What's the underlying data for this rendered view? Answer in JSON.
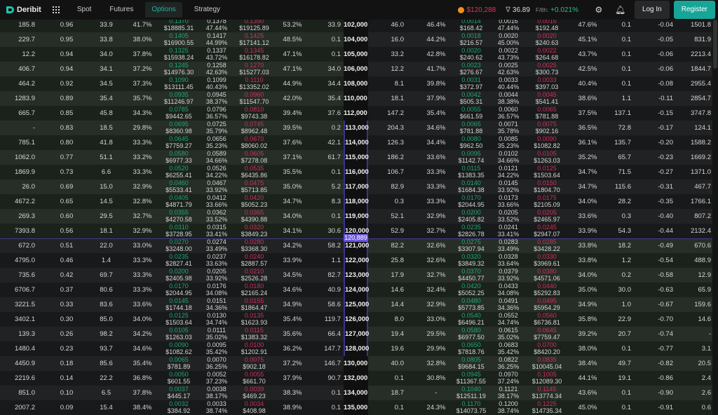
{
  "header": {
    "brand": "Deribit",
    "nav": [
      "Spot",
      "Futures",
      "Options",
      "Strategy"
    ],
    "active_nav": "Options",
    "btc_price": "$120,288",
    "dvol": "36.89",
    "funding_label": "F/8h:",
    "funding": "+0.021%",
    "login": "Log In",
    "register": "Register",
    "icons": [
      "deribit-logo",
      "apps-grid-icon",
      "bitcoin-icon",
      "dvol-icon",
      "gear-icon",
      "bell-icon"
    ]
  },
  "colors": {
    "accent": "#17a597",
    "bid": "#1fa876",
    "ask": "#d0305a",
    "underlying": "#6c55e0"
  },
  "underlying_price": "120,889",
  "rows": [
    {
      "strike": "102,000",
      "call": [
        "185.8",
        "0.96",
        "33.9",
        "41.7%",
        "0.1370",
        "$18885.31",
        "0.1378",
        "47.44%",
        "0.1390",
        "$19125.89",
        "53.2%",
        "33.9"
      ],
      "put": [
        "46.0",
        "46.4%",
        "0.0014",
        "$168.42",
        "0.0016",
        "47.44%",
        "0.0016",
        "$192.48",
        "47.6%",
        "0.1",
        "-0.04",
        "1501.8"
      ]
    },
    {
      "strike": "104,000",
      "call": [
        "229.7",
        "0.95",
        "33.8",
        "38.0%",
        "0.1405",
        "$16900.55",
        "0.1417",
        "44.99%",
        "0.1425",
        "$17141.12",
        "48.5%",
        "0.1"
      ],
      "put": [
        "16.0",
        "44.2%",
        "0.0018",
        "$216.57",
        "0.0020",
        "45.00%",
        "0.0020",
        "$240.63",
        "45.1%",
        "0.1",
        "-0.05",
        "831.9"
      ]
    },
    {
      "strike": "105,000",
      "call": [
        "12.2",
        "0.94",
        "34.0",
        "37.8%",
        "0.1325",
        "$15938.24",
        "0.1337",
        "43.72%",
        "0.1345",
        "$16178.82",
        "47.1%",
        "0.1"
      ],
      "put": [
        "33.2",
        "42.8%",
        "0.0020",
        "$240.62",
        "0.0022",
        "43.73%",
        "0.0022",
        "$264.68",
        "43.7%",
        "0.1",
        "-0.06",
        "2213.4"
      ]
    },
    {
      "strike": "106,000",
      "call": [
        "406.7",
        "0.94",
        "34.1",
        "37.2%",
        "0.1245",
        "$14976.30",
        "0.1258",
        "42.63%",
        "0.1270",
        "$15277.03",
        "47.1%",
        "34.0"
      ],
      "put": [
        "12.2",
        "41.7%",
        "0.0023",
        "$276.67",
        "0.0025",
        "42.63%",
        "0.0025",
        "$300.73",
        "42.5%",
        "0.1",
        "-0.06",
        "1844.7"
      ]
    },
    {
      "strike": "108,000",
      "call": [
        "464.2",
        "0.92",
        "34.5",
        "37.3%",
        "0.1090",
        "$13111.45",
        "0.1099",
        "40.43%",
        "0.1110",
        "$13352.02",
        "44.9%",
        "34.4"
      ],
      "put": [
        "8.1",
        "39.8%",
        "0.0031",
        "$372.97",
        "0.0033",
        "40.44%",
        "0.0033",
        "$397.03",
        "40.4%",
        "0.1",
        "-0.08",
        "2955.4"
      ]
    },
    {
      "strike": "110,000",
      "call": [
        "1283.9",
        "0.89",
        "35.4",
        "35.7%",
        "0.0935",
        "$11246.97",
        "0.0945",
        "38.37%",
        "0.0960",
        "$11547.70",
        "42.0%",
        "35.4"
      ],
      "put": [
        "18.1",
        "37.9%",
        "0.0042",
        "$505.31",
        "0.0044",
        "38.38%",
        "0.0045",
        "$541.41",
        "38.6%",
        "1.1",
        "-0.11",
        "2854.7"
      ]
    },
    {
      "strike": "112,000",
      "call": [
        "665.7",
        "0.85",
        "45.8",
        "34.3%",
        "0.0785",
        "$9442.65",
        "0.0796",
        "36.57%",
        "0.0810",
        "$9743.38",
        "39.4%",
        "37.6"
      ],
      "put": [
        "147.2",
        "35.4%",
        "0.0055",
        "$661.59",
        "0.0060",
        "36.57%",
        "0.0065",
        "$781.88",
        "37.5%",
        "137.1",
        "-0.15",
        "3747.8"
      ]
    },
    {
      "strike": "113,000",
      "call": [
        "-",
        "0.83",
        "18.5",
        "29.8%",
        "0.0695",
        "$8360.98",
        "0.0725",
        "35.79%",
        "0.0745",
        "$8962.48",
        "39.5%",
        "0.2"
      ],
      "put": [
        "204.3",
        "34.6%",
        "0.0065",
        "$781.88",
        "0.0071",
        "35.78%",
        "0.0075",
        "$902.16",
        "36.5%",
        "72.8",
        "-0.17",
        "124.1"
      ]
    },
    {
      "strike": "114,000",
      "call": [
        "785.1",
        "0.80",
        "41.8",
        "33.3%",
        "0.0645",
        "$7759.27",
        "0.0656",
        "35.23%",
        "0.0670",
        "$8060.02",
        "37.6%",
        "42.1"
      ],
      "put": [
        "126.3",
        "34.4%",
        "0.0080",
        "$962.50",
        "0.0085",
        "35.23%",
        "0.0090",
        "$1082.82",
        "36.1%",
        "135.7",
        "-0.20",
        "1588.2"
      ]
    },
    {
      "strike": "115,000",
      "call": [
        "1062.0",
        "0.77",
        "51.1",
        "33.2%",
        "0.0580",
        "$6977.33",
        "0.0589",
        "34.66%",
        "0.0605",
        "$7278.08",
        "37.1%",
        "61.7"
      ],
      "put": [
        "186.2",
        "33.6%",
        "0.0095",
        "$1142.74",
        "0.0102",
        "34.66%",
        "0.0105",
        "$1263.03",
        "35.2%",
        "65.7",
        "-0.23",
        "1669.2"
      ]
    },
    {
      "strike": "116,000",
      "call": [
        "1869.9",
        "0.73",
        "6.6",
        "33.3%",
        "0.0520",
        "$6255.41",
        "0.0526",
        "34.22%",
        "0.0535",
        "$6435.86",
        "35.5%",
        "0.1"
      ],
      "put": [
        "106.7",
        "33.3%",
        "0.0115",
        "$1383.35",
        "0.0121",
        "34.22%",
        "0.0125",
        "$1503.64",
        "34.7%",
        "71.5",
        "-0.27",
        "1371.0"
      ]
    },
    {
      "strike": "117,000",
      "call": [
        "26.0",
        "0.69",
        "15.0",
        "32.9%",
        "0.0460",
        "$5533.41",
        "0.0467",
        "33.92%",
        "0.0475",
        "$5713.85",
        "35.0%",
        "5.2"
      ],
      "put": [
        "82.9",
        "33.3%",
        "0.0140",
        "$1684.38",
        "0.0145",
        "33.92%",
        "0.0150",
        "$1804.70",
        "34.7%",
        "115.6",
        "-0.31",
        "467.7"
      ]
    },
    {
      "strike": "118,000",
      "call": [
        "4672.2",
        "0.65",
        "14.5",
        "32.8%",
        "0.0405",
        "$4871.79",
        "0.0412",
        "33.66%",
        "0.0420",
        "$5052.23",
        "34.7%",
        "8.3"
      ],
      "put": [
        "0.3",
        "33.3%",
        "0.0170",
        "$2044.95",
        "0.0173",
        "33.66%",
        "0.0175",
        "$2105.09",
        "34.0%",
        "28.2",
        "-0.35",
        "1766.1"
      ]
    },
    {
      "strike": "119,000",
      "call": [
        "269.3",
        "0.60",
        "29.5",
        "32.7%",
        "0.0355",
        "$4270.58",
        "0.0362",
        "33.52%",
        "0.0365",
        "$4390.88",
        "34.0%",
        "0.1"
      ],
      "put": [
        "52.1",
        "32.9%",
        "0.0200",
        "$2405.82",
        "0.0205",
        "33.52%",
        "0.0205",
        "$2465.97",
        "33.6%",
        "0.3",
        "-0.40",
        "807.2"
      ]
    },
    {
      "strike": "120,000",
      "call": [
        "7393.8",
        "0.56",
        "18.1",
        "32.9%",
        "0.0310",
        "$3728.95",
        "0.0315",
        "33.41%",
        "0.0320",
        "$3849.23",
        "34.1%",
        "30.6"
      ],
      "put": [
        "52.9",
        "32.7%",
        "0.0235",
        "$2826.78",
        "0.0241",
        "33.41%",
        "0.0245",
        "$2947.07",
        "33.9%",
        "54.3",
        "-0.44",
        "2132.4"
      ]
    },
    {
      "strike": "121,000",
      "call": [
        "672.0",
        "0.51",
        "22.0",
        "33.0%",
        "0.0270",
        "$3248.00",
        "0.0274",
        "33.49%",
        "0.0280",
        "$3368.30",
        "34.2%",
        "58.2"
      ],
      "put": [
        "82.2",
        "32.6%",
        "0.0275",
        "$3307.94",
        "0.0283",
        "33.49%",
        "0.0285",
        "$3428.22",
        "33.8%",
        "18.2",
        "-0.49",
        "670.6"
      ]
    },
    {
      "strike": "122,000",
      "call": [
        "4795.0",
        "0.46",
        "1.4",
        "33.3%",
        "0.0235",
        "$2827.41",
        "0.0237",
        "33.63%",
        "0.0240",
        "$2887.57",
        "33.9%",
        "1.1"
      ],
      "put": [
        "25.8",
        "32.6%",
        "0.0320",
        "$3849.32",
        "0.0328",
        "33.64%",
        "0.0330",
        "$3969.61",
        "33.8%",
        "1.2",
        "-0.54",
        "488.9"
      ]
    },
    {
      "strike": "123,000",
      "call": [
        "735.6",
        "0.42",
        "69.7",
        "33.3%",
        "0.0200",
        "$2405.98",
        "0.0205",
        "33.92%",
        "0.0210",
        "$2526.28",
        "34.5%",
        "82.7"
      ],
      "put": [
        "17.9",
        "32.7%",
        "0.0370",
        "$4450.77",
        "0.0379",
        "33.92%",
        "0.0380",
        "$4571.06",
        "34.0%",
        "0.2",
        "-0.58",
        "12.9"
      ]
    },
    {
      "strike": "124,000",
      "call": [
        "6706.7",
        "0.37",
        "80.6",
        "33.3%",
        "0.0170",
        "$2044.95",
        "0.0176",
        "34.08%",
        "0.0180",
        "$2165.24",
        "34.6%",
        "40.9"
      ],
      "put": [
        "14.6",
        "32.4%",
        "0.0420",
        "$5052.25",
        "0.0433",
        "34.08%",
        "0.0440",
        "$5292.83",
        "35.0%",
        "30.0",
        "-0.63",
        "65.9"
      ]
    },
    {
      "strike": "125,000",
      "call": [
        "3221.5",
        "0.33",
        "83.6",
        "33.6%",
        "0.0145",
        "$1744.18",
        "0.0151",
        "34.36%",
        "0.0155",
        "$1864.47",
        "34.9%",
        "58.6"
      ],
      "put": [
        "14.4",
        "32.9%",
        "0.0480",
        "$5773.85",
        "0.0491",
        "34.36%",
        "0.0495",
        "$5954.29",
        "34.9%",
        "1.0",
        "-0.67",
        "159.6"
      ]
    },
    {
      "strike": "126,000",
      "call": [
        "3402.1",
        "0.30",
        "85.0",
        "34.0%",
        "0.0125",
        "$1503.64",
        "0.0130",
        "34.74%",
        "0.0135",
        "$1623.93",
        "35.4%",
        "119.7"
      ],
      "put": [
        "8.0",
        "33.0%",
        "0.0540",
        "$6496.21",
        "0.0552",
        "34.74%",
        "0.0560",
        "$6736.81",
        "35.8%",
        "22.9",
        "-0.70",
        "14.6"
      ]
    },
    {
      "strike": "127,000",
      "call": [
        "139.3",
        "0.26",
        "98.2",
        "34.2%",
        "0.0105",
        "$1263.03",
        "0.0111",
        "35.02%",
        "0.0115",
        "$1383.32",
        "35.6%",
        "66.4"
      ],
      "put": [
        "19.4",
        "29.5%",
        "0.0580",
        "$6977.50",
        "0.0615",
        "35.02%",
        "0.0645",
        "$7759.47",
        "39.2%",
        "20.7",
        "-0.74",
        "-"
      ]
    },
    {
      "strike": "128,000",
      "call": [
        "1480.4",
        "0.23",
        "93.7",
        "34.6%",
        "0.0090",
        "$1082.62",
        "0.0095",
        "35.42%",
        "0.0100",
        "$1202.91",
        "36.2%",
        "147.7"
      ],
      "put": [
        "19.6",
        "29.9%",
        "0.0650",
        "$7818.76",
        "0.0683",
        "35.42%",
        "0.0700",
        "$8420.20",
        "38.0%",
        "0.1",
        "-0.77",
        "3.1"
      ]
    },
    {
      "strike": "130,000",
      "call": [
        "4450.9",
        "0.18",
        "85.6",
        "35.4%",
        "0.0065",
        "$781.89",
        "0.0070",
        "36.25%",
        "0.0075",
        "$902.18",
        "37.2%",
        "146.7"
      ],
      "put": [
        "40.0",
        "32.8%",
        "0.0805",
        "$9684.15",
        "0.0822",
        "36.25%",
        "0.0835",
        "$10045.04",
        "38.4%",
        "49.7",
        "-0.82",
        "20.5"
      ]
    },
    {
      "strike": "132,000",
      "call": [
        "2219.6",
        "0.14",
        "22.2",
        "36.8%",
        "0.0050",
        "$601.55",
        "0.0052",
        "37.23%",
        "0.0055",
        "$661.70",
        "37.9%",
        "90.7"
      ],
      "put": [
        "0.1",
        "30.8%",
        "0.0945",
        "$11367.55",
        "0.0970",
        "37.24%",
        "0.1005",
        "$12089.30",
        "44.1%",
        "19.1",
        "-0.86",
        "2.4"
      ]
    },
    {
      "strike": "134,000",
      "call": [
        "851.0",
        "0.10",
        "6.5",
        "37.8%",
        "0.0037",
        "$445.17",
        "0.0038",
        "38.17%",
        "0.0039",
        "$469.23",
        "38.3%",
        "0.1"
      ],
      "put": [
        "18.7",
        "-",
        "0.1040",
        "$12511.19",
        "0.1121",
        "38.17%",
        "0.1145",
        "$13774.34",
        "43.6%",
        "0.1",
        "-0.90",
        "2.6"
      ]
    },
    {
      "strike": "135,000",
      "call": [
        "2007.2",
        "0.09",
        "15.4",
        "38.4%",
        "0.0032",
        "$384.92",
        "0.0033",
        "38.74%",
        "0.0034",
        "$408.98",
        "38.9%",
        "0.1"
      ],
      "put": [
        "0.1",
        "24.3%",
        "0.1170",
        "$14073.75",
        "0.1200",
        "38.74%",
        "0.1225",
        "$14735.34",
        "45.0%",
        "0.1",
        "-0.91",
        "0.6"
      ]
    }
  ]
}
